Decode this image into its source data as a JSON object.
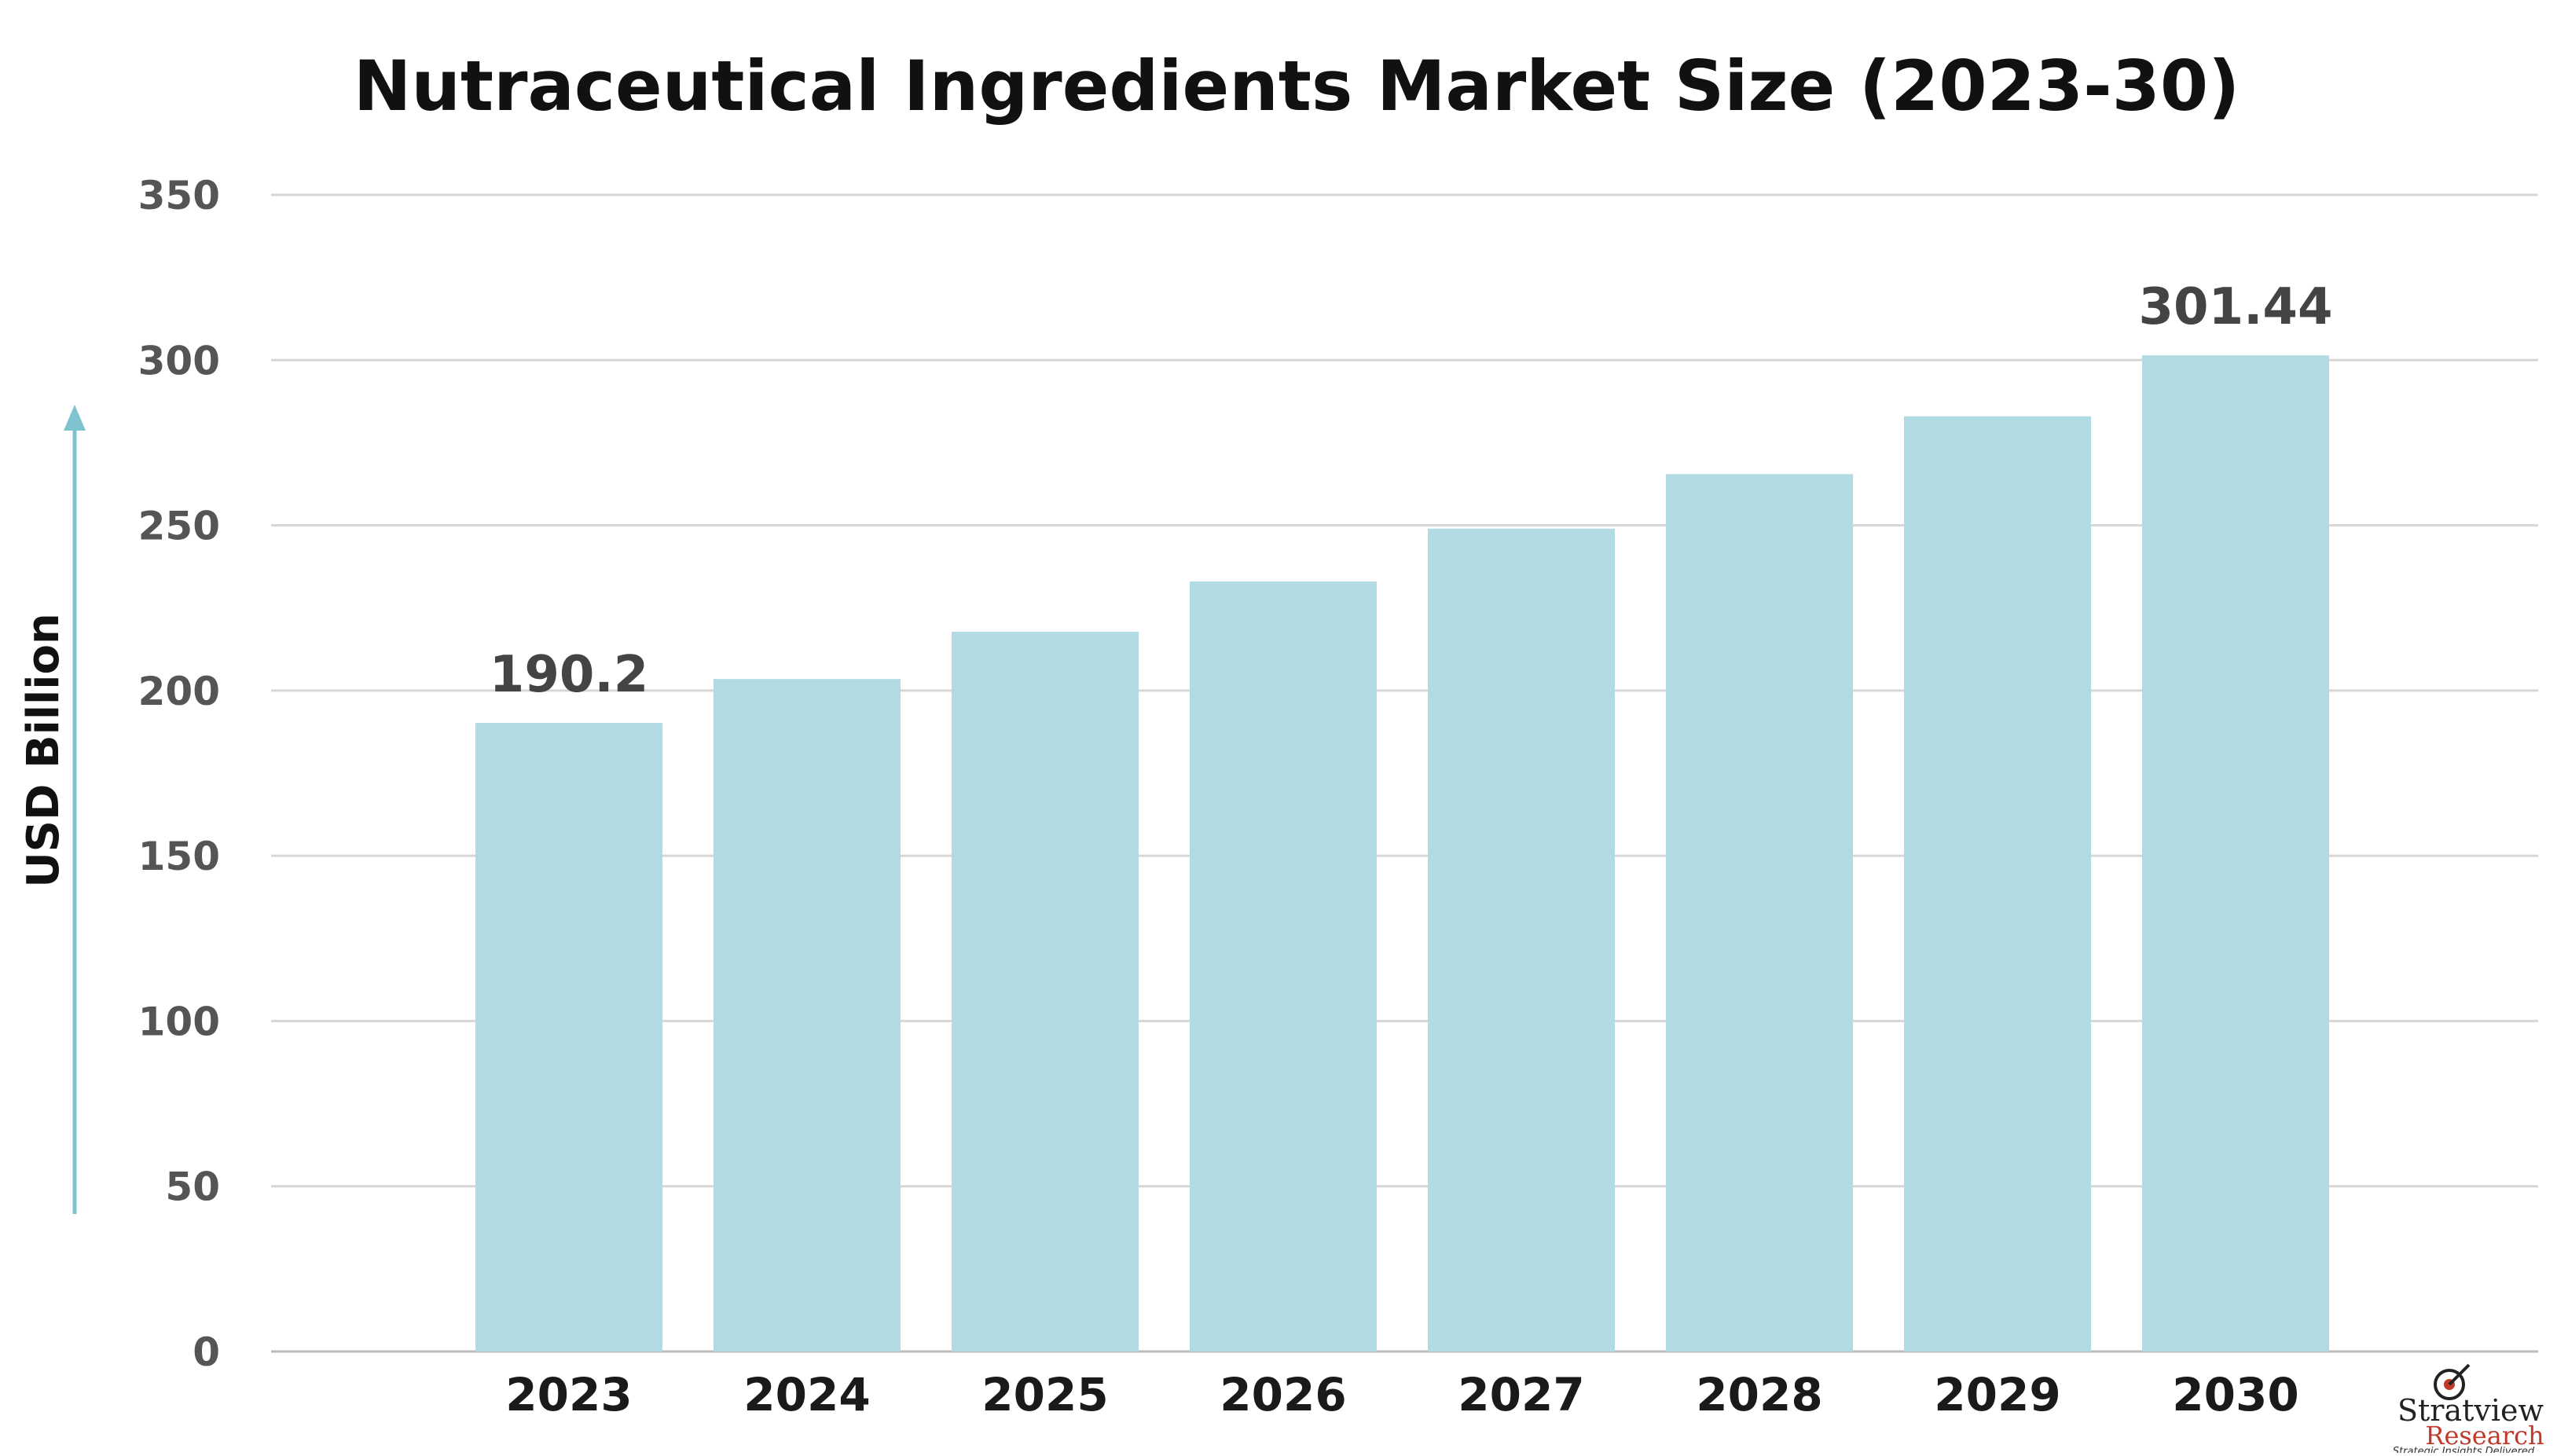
{
  "chart_data": {
    "type": "bar",
    "title": "Nutraceutical Ingredients Market Size (2023-30)",
    "ylabel": "USD Billion",
    "xlabel": "",
    "categories": [
      "2023",
      "2024",
      "2025",
      "2026",
      "2027",
      "2028",
      "2029",
      "2030"
    ],
    "values": [
      190.2,
      203.5,
      217.8,
      233.0,
      249.0,
      265.5,
      283.0,
      301.44
    ],
    "data_labels": [
      "190.2",
      "",
      "",
      "",
      "",
      "",
      "",
      "301.44"
    ],
    "ylim": [
      0,
      350
    ],
    "yticks": [
      "0",
      "50",
      "100",
      "150",
      "200",
      "250",
      "300",
      "350"
    ],
    "grid": true,
    "bar_color": "#b2dae2",
    "arrow_color": "#7ec3cf"
  },
  "branding": {
    "name": "Stratview",
    "sub": "Research",
    "tagline": "Strategic Insights Delivered"
  }
}
